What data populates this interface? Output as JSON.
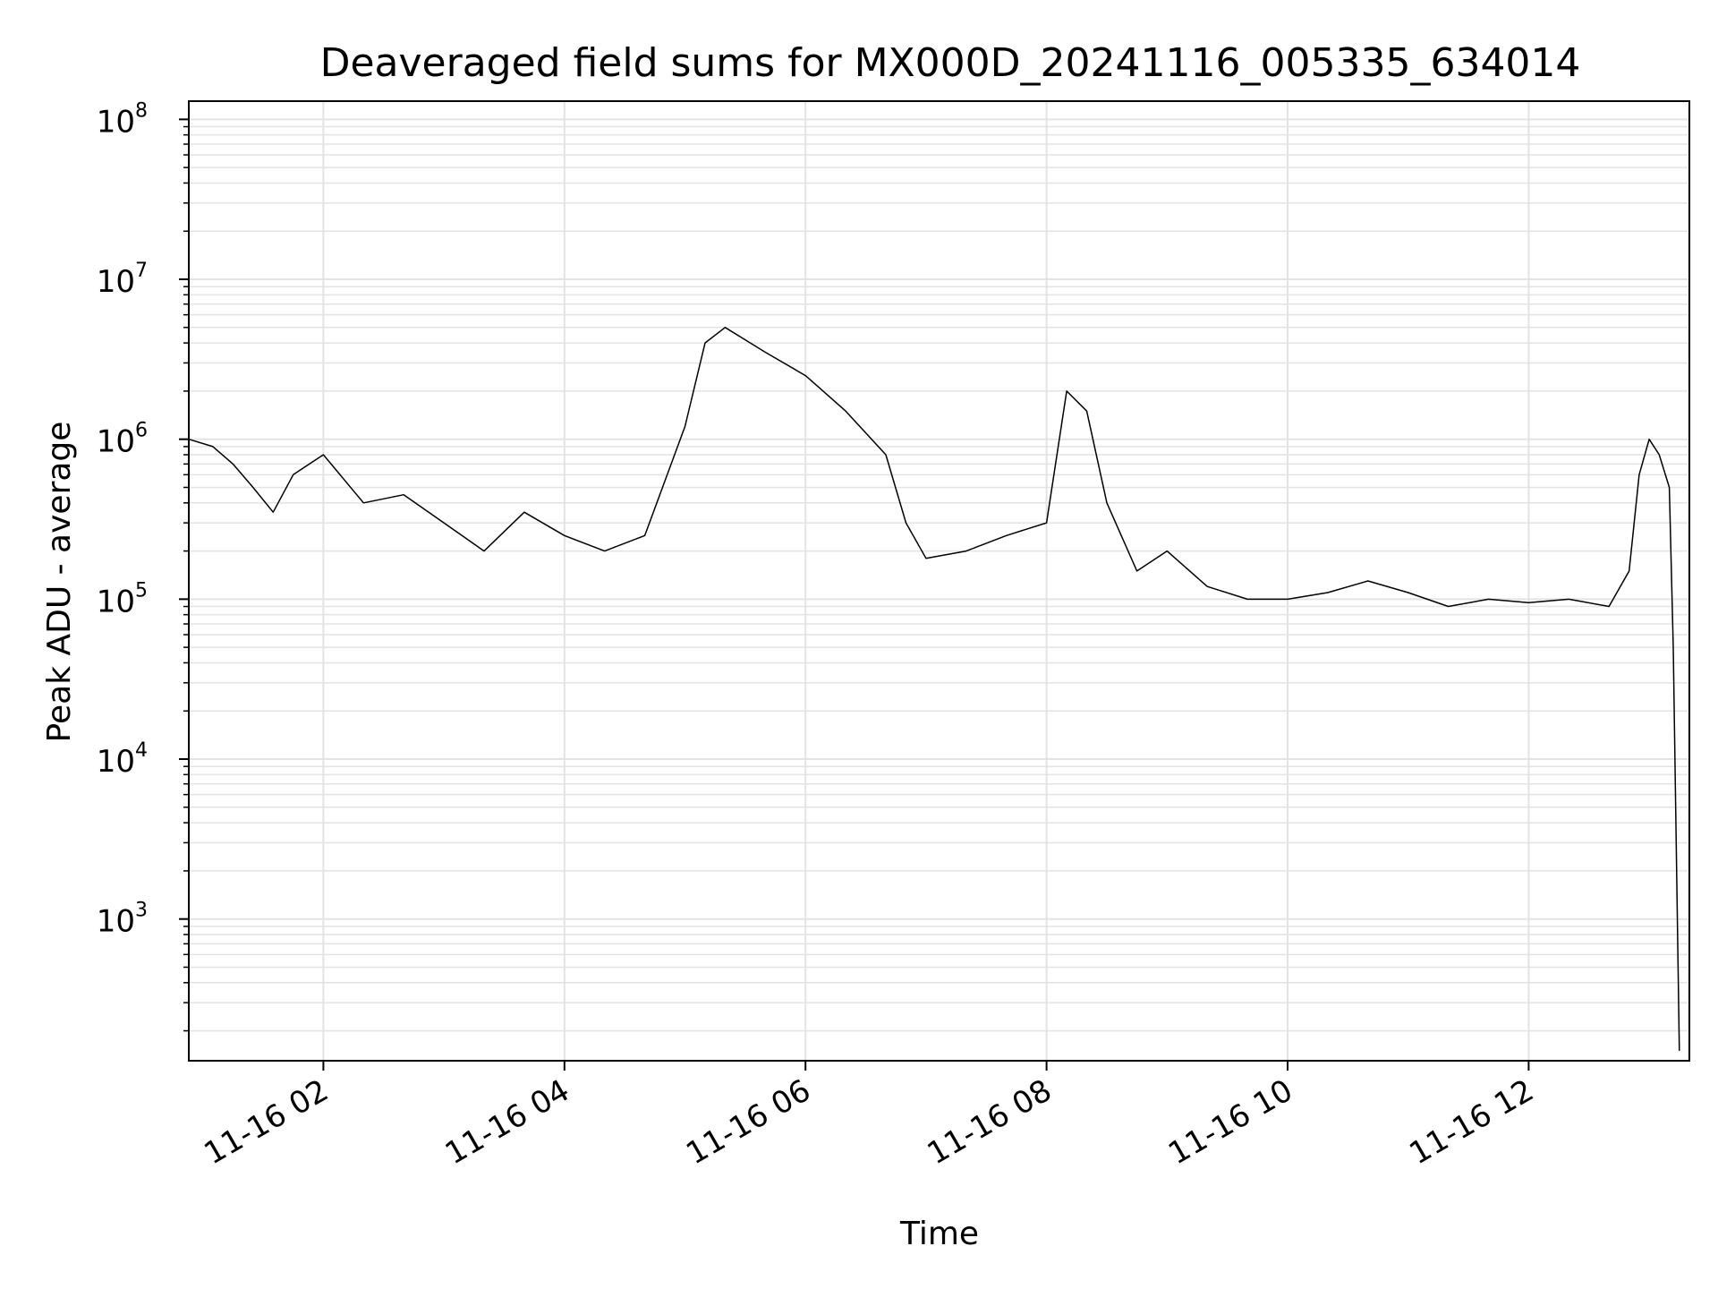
{
  "chart_data": {
    "type": "line",
    "title": "Deaveraged field sums for MX000D_20241116_005335_634014",
    "xlabel": "Time",
    "ylabel": "Peak ADU - average",
    "yscale": "log",
    "ylim": [
      130,
      130000000
    ],
    "xlim": [
      "2024-11-16 00:53",
      "2024-11-16 13:20"
    ],
    "x_ticks": [
      {
        "value": "2024-11-16 02:00",
        "label": "11-16 02"
      },
      {
        "value": "2024-11-16 04:00",
        "label": "11-16 04"
      },
      {
        "value": "2024-11-16 06:00",
        "label": "11-16 06"
      },
      {
        "value": "2024-11-16 08:00",
        "label": "11-16 08"
      },
      {
        "value": "2024-11-16 10:00",
        "label": "11-16 10"
      },
      {
        "value": "2024-11-16 12:00",
        "label": "11-16 12"
      }
    ],
    "y_ticks": [
      {
        "value": 1000,
        "base": "10",
        "exp": "3"
      },
      {
        "value": 10000,
        "base": "10",
        "exp": "4"
      },
      {
        "value": 100000,
        "base": "10",
        "exp": "5"
      },
      {
        "value": 1000000,
        "base": "10",
        "exp": "6"
      },
      {
        "value": 10000000,
        "base": "10",
        "exp": "7"
      },
      {
        "value": 100000000,
        "base": "10",
        "exp": "8"
      }
    ],
    "grid": true,
    "line_color": "#000000",
    "grid_color": "#e3e3e3",
    "series": [
      {
        "x": [
          "2024-11-16 00:53",
          "2024-11-16 01:05",
          "2024-11-16 01:15",
          "2024-11-16 01:25",
          "2024-11-16 01:35",
          "2024-11-16 01:45",
          "2024-11-16 02:00",
          "2024-11-16 02:20",
          "2024-11-16 02:40",
          "2024-11-16 03:00",
          "2024-11-16 03:20",
          "2024-11-16 03:40",
          "2024-11-16 04:00",
          "2024-11-16 04:20",
          "2024-11-16 04:40",
          "2024-11-16 05:00",
          "2024-11-16 05:10",
          "2024-11-16 05:20",
          "2024-11-16 05:40",
          "2024-11-16 06:00",
          "2024-11-16 06:20",
          "2024-11-16 06:40",
          "2024-11-16 06:50",
          "2024-11-16 07:00",
          "2024-11-16 07:20",
          "2024-11-16 07:40",
          "2024-11-16 08:00",
          "2024-11-16 08:10",
          "2024-11-16 08:20",
          "2024-11-16 08:30",
          "2024-11-16 08:45",
          "2024-11-16 09:00",
          "2024-11-16 09:20",
          "2024-11-16 09:40",
          "2024-11-16 10:00",
          "2024-11-16 10:20",
          "2024-11-16 10:40",
          "2024-11-16 11:00",
          "2024-11-16 11:20",
          "2024-11-16 11:40",
          "2024-11-16 12:00",
          "2024-11-16 12:20",
          "2024-11-16 12:40",
          "2024-11-16 12:50",
          "2024-11-16 12:55",
          "2024-11-16 13:00",
          "2024-11-16 13:05",
          "2024-11-16 13:10",
          "2024-11-16 13:12",
          "2024-11-16 13:15"
        ],
        "y": [
          1000000,
          900000,
          700000,
          500000,
          350000,
          600000,
          800000,
          400000,
          450000,
          300000,
          200000,
          350000,
          250000,
          200000,
          250000,
          1200000,
          4000000,
          5000000,
          3500000,
          2500000,
          1500000,
          800000,
          300000,
          180000,
          200000,
          250000,
          300000,
          2000000,
          1500000,
          400000,
          150000,
          200000,
          120000,
          100000,
          100000,
          110000,
          130000,
          110000,
          90000,
          100000,
          95000,
          100000,
          90000,
          150000,
          600000,
          1000000,
          800000,
          500000,
          50000,
          150
        ]
      }
    ]
  }
}
